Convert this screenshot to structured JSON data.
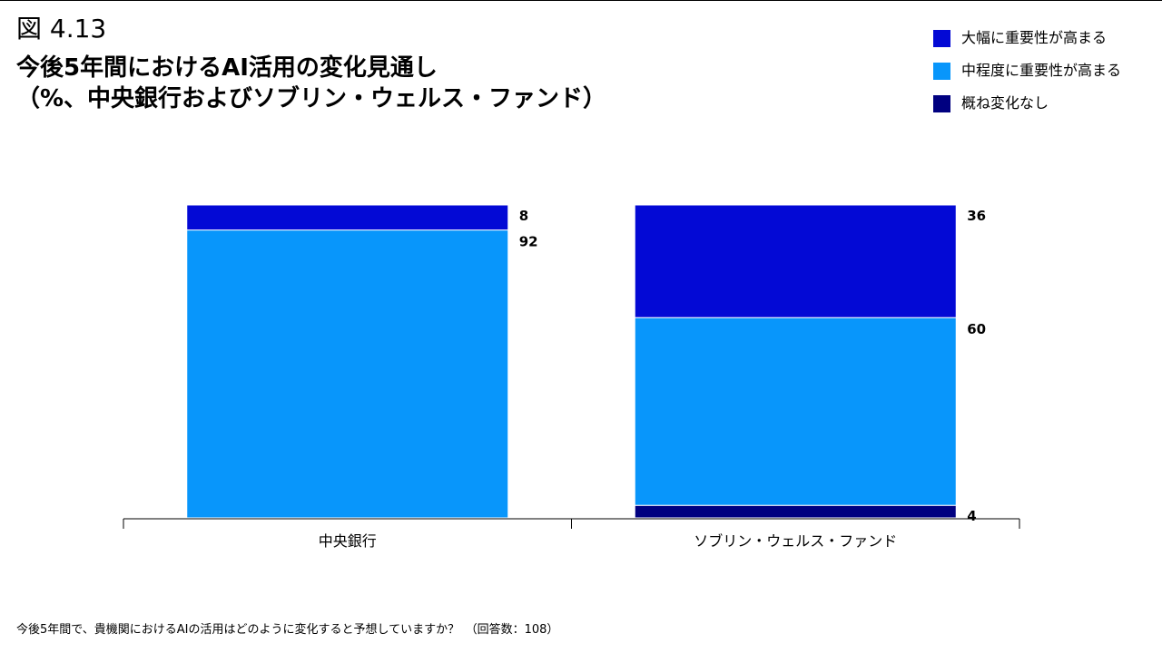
{
  "figure_label": "図 4.13",
  "title_line1": "今後5年間におけるAI活用の変化見通し",
  "title_line2": "（%、中央銀行およびソブリン・ウェルス・ファンド）",
  "footnote": "今後5年間で、貴機関におけるAIの活用はどのように変化すると予想していますか？　（回答数：108）",
  "chart_data": {
    "type": "bar",
    "stacked": true,
    "categories": [
      "中央銀行",
      "ソブリン・ウェルス・ファンド"
    ],
    "series": [
      {
        "name": "概ね変化なし",
        "values": [
          0,
          4
        ],
        "color": "#000080"
      },
      {
        "name": "中程度に重要性が高まる",
        "values": [
          92,
          60
        ],
        "color": "#0896FB"
      },
      {
        "name": "大幅に重要性が高まる",
        "values": [
          8,
          36
        ],
        "color": "#0309D5"
      }
    ],
    "data_labels": [
      [
        "",
        "92",
        "8"
      ],
      [
        "4",
        "60",
        "36"
      ]
    ],
    "ylim": [
      0,
      100
    ],
    "grid": false,
    "legend_position": "top-right"
  }
}
